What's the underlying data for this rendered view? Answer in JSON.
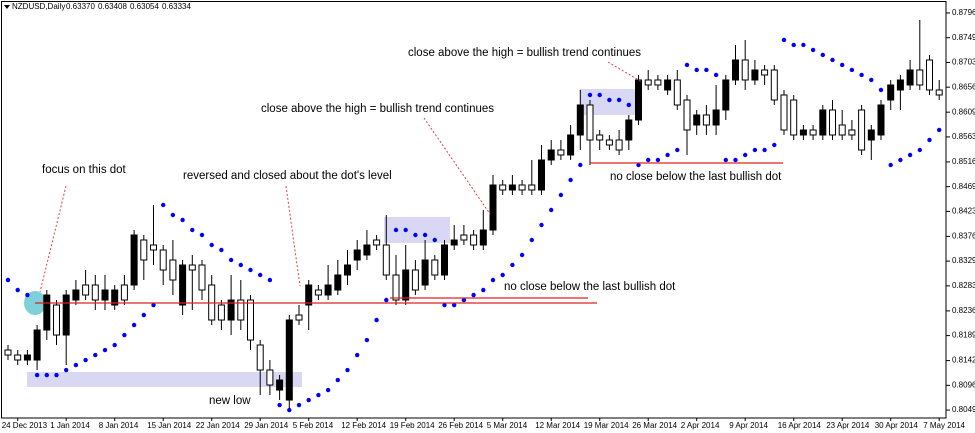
{
  "chart_data": {
    "type": "candlestick",
    "title": "NZDUSD,Daily",
    "header_values": [
      "0.63370",
      "0.63408",
      "0.63054",
      "0.63334"
    ],
    "categories": [
      null,
      "24 Dec 2013",
      null,
      null,
      null,
      null,
      "1 Jan 2014",
      null,
      null,
      null,
      null,
      "8 Jan 2014",
      null,
      null,
      null,
      null,
      "15 Jan 2014",
      null,
      null,
      null,
      null,
      "22 Jan 2014",
      null,
      null,
      null,
      null,
      "29 Jan 2014",
      null,
      null,
      null,
      null,
      "5 Feb 2014",
      null,
      null,
      null,
      null,
      "12 Feb 2014",
      null,
      null,
      null,
      null,
      "19 Feb 2014",
      null,
      null,
      null,
      null,
      "26 Feb 2014",
      null,
      null,
      null,
      null,
      "5 Mar 2014",
      null,
      null,
      null,
      null,
      "12 Mar 2014",
      null,
      null,
      null,
      null,
      "19 Mar 2014",
      null,
      null,
      null,
      null,
      "26 Mar 2014",
      null,
      null,
      null,
      null,
      "2 Apr 2014",
      null,
      null,
      null,
      null,
      "9 Apr 2014",
      null,
      null,
      null,
      null,
      "16 Apr 2014",
      null,
      null,
      null,
      null,
      "23 Apr 2014",
      null,
      null,
      null,
      null,
      "30 Apr 2014",
      null,
      null,
      null,
      null,
      "7 May 2014"
    ],
    "ohlc": [
      [
        0.81624,
        0.81718,
        0.81436,
        0.8153
      ],
      [
        0.8153,
        0.81624,
        0.81342,
        0.81436
      ],
      [
        0.81436,
        0.81624,
        0.81342,
        0.8153
      ],
      [
        0.81436,
        0.82094,
        0.81248,
        0.82
      ],
      [
        0.82,
        0.82752,
        0.81812,
        0.82658
      ],
      [
        0.8247,
        0.82564,
        0.81718,
        0.81906
      ],
      [
        0.81906,
        0.82752,
        0.81342,
        0.82658
      ],
      [
        0.82564,
        0.8294,
        0.8247,
        0.82752
      ],
      [
        0.82846,
        0.83128,
        0.82564,
        0.82658
      ],
      [
        0.82846,
        0.83034,
        0.82376,
        0.82564
      ],
      [
        0.82564,
        0.83034,
        0.82376,
        0.82752
      ],
      [
        0.8247,
        0.82846,
        0.82376,
        0.82752
      ],
      [
        0.82846,
        0.83034,
        0.8247,
        0.82564
      ],
      [
        0.82846,
        0.8388,
        0.82752,
        0.83786
      ],
      [
        0.83692,
        0.83786,
        0.8294,
        0.83316
      ],
      [
        0.83598,
        0.8435,
        0.83222,
        0.83504
      ],
      [
        0.83504,
        0.83598,
        0.82846,
        0.83128
      ],
      [
        0.83316,
        0.83692,
        0.82658,
        0.8294
      ],
      [
        0.8247,
        0.83316,
        0.82282,
        0.83222
      ],
      [
        0.83222,
        0.8341,
        0.82376,
        0.83128
      ],
      [
        0.83222,
        0.83316,
        0.82564,
        0.82752
      ],
      [
        0.82846,
        0.83034,
        0.82094,
        0.82188
      ],
      [
        0.8247,
        0.82564,
        0.82,
        0.82188
      ],
      [
        0.82188,
        0.83034,
        0.81906,
        0.82564
      ],
      [
        0.82564,
        0.8294,
        0.82,
        0.82188
      ],
      [
        0.82564,
        0.82658,
        0.81624,
        0.81812
      ],
      [
        0.81718,
        0.81812,
        0.80778,
        0.81248
      ],
      [
        0.81248,
        0.81436,
        0.80778,
        0.80966
      ],
      [
        0.80872,
        0.81154,
        0.80684,
        0.8106
      ],
      [
        0.80684,
        0.82282,
        0.80496,
        0.82188
      ],
      [
        0.82282,
        0.8247,
        0.82094,
        0.82188
      ],
      [
        0.8247,
        0.8294,
        0.82,
        0.82846
      ],
      [
        0.82752,
        0.82846,
        0.82564,
        0.82658
      ],
      [
        0.82658,
        0.83222,
        0.82564,
        0.82846
      ],
      [
        0.82752,
        0.83316,
        0.82658,
        0.83034
      ],
      [
        0.83034,
        0.83504,
        0.82846,
        0.83222
      ],
      [
        0.83316,
        0.83692,
        0.83128,
        0.83504
      ],
      [
        0.8341,
        0.8388,
        0.83316,
        0.83598
      ],
      [
        0.83692,
        0.83786,
        0.83504,
        0.83598
      ],
      [
        0.83598,
        0.84162,
        0.8294,
        0.83034
      ],
      [
        0.83034,
        0.8341,
        0.8247,
        0.82564
      ],
      [
        0.82564,
        0.83598,
        0.8247,
        0.83128
      ],
      [
        0.83128,
        0.83316,
        0.82658,
        0.82752
      ],
      [
        0.82846,
        0.83692,
        0.82752,
        0.83316
      ],
      [
        0.83316,
        0.8341,
        0.8294,
        0.83034
      ],
      [
        0.83034,
        0.83692,
        0.8294,
        0.83598
      ],
      [
        0.83598,
        0.83974,
        0.83504,
        0.83692
      ],
      [
        0.83786,
        0.83974,
        0.83598,
        0.83692
      ],
      [
        0.83786,
        0.8388,
        0.83504,
        0.83598
      ],
      [
        0.83598,
        0.84256,
        0.83504,
        0.8388
      ],
      [
        0.8388,
        0.84914,
        0.83786,
        0.84726
      ],
      [
        0.84726,
        0.8482,
        0.84538,
        0.84632
      ],
      [
        0.84632,
        0.84914,
        0.84538,
        0.84726
      ],
      [
        0.84726,
        0.8482,
        0.84538,
        0.84632
      ],
      [
        0.84726,
        0.85196,
        0.84538,
        0.84632
      ],
      [
        0.84632,
        0.85478,
        0.84538,
        0.85196
      ],
      [
        0.85196,
        0.85572,
        0.85102,
        0.85384
      ],
      [
        0.85384,
        0.85572,
        0.85196,
        0.8529
      ],
      [
        0.8529,
        0.85854,
        0.85196,
        0.85666
      ],
      [
        0.85666,
        0.86512,
        0.85384,
        0.8623
      ],
      [
        0.8623,
        0.86324,
        0.85102,
        0.85572
      ],
      [
        0.85666,
        0.8576,
        0.85384,
        0.85572
      ],
      [
        0.85572,
        0.85666,
        0.85384,
        0.85478
      ],
      [
        0.85572,
        0.8576,
        0.8529,
        0.85384
      ],
      [
        0.85572,
        0.86042,
        0.85384,
        0.85948
      ],
      [
        0.85948,
        0.86794,
        0.85854,
        0.867
      ],
      [
        0.867,
        0.86888,
        0.86512,
        0.86606
      ],
      [
        0.867,
        0.86794,
        0.86512,
        0.86606
      ],
      [
        0.86512,
        0.86794,
        0.86418,
        0.867
      ],
      [
        0.867,
        0.86888,
        0.86136,
        0.8623
      ],
      [
        0.86324,
        0.86418,
        0.8529,
        0.8576
      ],
      [
        0.85854,
        0.86136,
        0.85666,
        0.86042
      ],
      [
        0.86042,
        0.8623,
        0.85666,
        0.85854
      ],
      [
        0.85854,
        0.86606,
        0.85666,
        0.86136
      ],
      [
        0.86136,
        0.86794,
        0.85948,
        0.867
      ],
      [
        0.867,
        0.87358,
        0.86606,
        0.87076
      ],
      [
        0.87076,
        0.87452,
        0.86512,
        0.867
      ],
      [
        0.867,
        0.87076,
        0.86606,
        0.86888
      ],
      [
        0.86888,
        0.86982,
        0.86606,
        0.86794
      ],
      [
        0.86888,
        0.86982,
        0.8623,
        0.86324
      ],
      [
        0.86418,
        0.86512,
        0.85666,
        0.8576
      ],
      [
        0.86324,
        0.86418,
        0.85572,
        0.85666
      ],
      [
        0.85666,
        0.85854,
        0.85572,
        0.8576
      ],
      [
        0.8576,
        0.85854,
        0.85572,
        0.85666
      ],
      [
        0.85666,
        0.8623,
        0.85572,
        0.86136
      ],
      [
        0.86136,
        0.86324,
        0.85572,
        0.85666
      ],
      [
        0.85854,
        0.86136,
        0.85572,
        0.85666
      ],
      [
        0.8576,
        0.85948,
        0.85572,
        0.85666
      ],
      [
        0.86136,
        0.8623,
        0.8529,
        0.85384
      ],
      [
        0.85572,
        0.85854,
        0.85196,
        0.8576
      ],
      [
        0.85666,
        0.86324,
        0.85572,
        0.8623
      ],
      [
        0.86324,
        0.867,
        0.86136,
        0.86606
      ],
      [
        0.86512,
        0.86794,
        0.86136,
        0.867
      ],
      [
        0.86606,
        0.87076,
        0.86512,
        0.86888
      ],
      [
        0.86888,
        0.87828,
        0.86512,
        0.86606
      ],
      [
        0.87076,
        0.8717,
        0.86418,
        0.86512
      ],
      [
        0.86512,
        0.867,
        0.86324,
        0.86418
      ]
    ],
    "up_color": "#000000",
    "down_color": "#ffffff",
    "sar": [
      0.8294,
      0.82752,
      0.82658,
      0.81154,
      0.81154,
      0.81154,
      0.81248,
      0.81342,
      0.81436,
      0.8153,
      0.81624,
      0.81718,
      0.81906,
      0.82094,
      0.82282,
      0.8247,
      0.8435,
      0.84162,
      0.84068,
      0.8388,
      0.83786,
      0.83598,
      0.83504,
      0.83316,
      0.83222,
      0.83128,
      0.83034,
      0.8294,
      0.8059,
      0.80496,
      0.8059,
      0.80684,
      0.80778,
      0.80872,
      0.8106,
      0.81248,
      0.8153,
      0.81812,
      0.82188,
      0.82564,
      0.8388,
      0.8388,
      0.83786,
      0.83786,
      0.83692,
      0.8247,
      0.8247,
      0.82564,
      0.82658,
      0.82752,
      0.8294,
      0.83034,
      0.83222,
      0.8341,
      0.83692,
      0.83974,
      0.84256,
      0.84538,
      0.8482,
      0.85102,
      0.86418,
      0.86418,
      0.86324,
      0.86324,
      0.8623,
      0.85102,
      0.85196,
      0.85196,
      0.8529,
      0.85384,
      0.86982,
      0.86888,
      0.86888,
      0.86794,
      0.85196,
      0.85196,
      0.8529,
      0.85384,
      0.85384,
      0.85478,
      0.87452,
      0.87358,
      0.87358,
      0.87264,
      0.8717,
      0.87076,
      0.86982,
      0.86888,
      0.86794,
      0.867,
      0.86512,
      0.85102,
      0.85196,
      0.8529,
      0.85384,
      0.85572,
      0.8576
    ],
    "sar_color": "#0000ff",
    "ylim": [
      0.80346,
      0.88166
    ],
    "yticks": [
      {
        "value": 0.8796,
        "label": "0.87960"
      },
      0.87495,
      {
        "value": 0.8703,
        "label": "0.87030"
      },
      0.86565,
      0.86095,
      {
        "value": 0.8563,
        "label": "0.85630"
      },
      {
        "value": 0.8516,
        "label": "0.85160"
      },
      0.84695,
      {
        "value": 0.8423,
        "label": "0.84230"
      },
      {
        "value": 0.8376,
        "label": "0.83760"
      },
      0.83295,
      {
        "value": 0.8283,
        "label": "0.82830"
      },
      {
        "value": 0.8236,
        "label": "0.82360"
      },
      0.81895,
      0.81425,
      {
        "value": 0.8096,
        "label": "0.80960"
      },
      0.80495
    ],
    "grid": false,
    "annotations": [
      "focus on this dot",
      "reversed and closed about the dot's level",
      "close above the high = bullish trend continues",
      "close above the high = bullish trend continues",
      "no close below the last bullish dot",
      "no close below the last bullish dot",
      "new low"
    ]
  }
}
